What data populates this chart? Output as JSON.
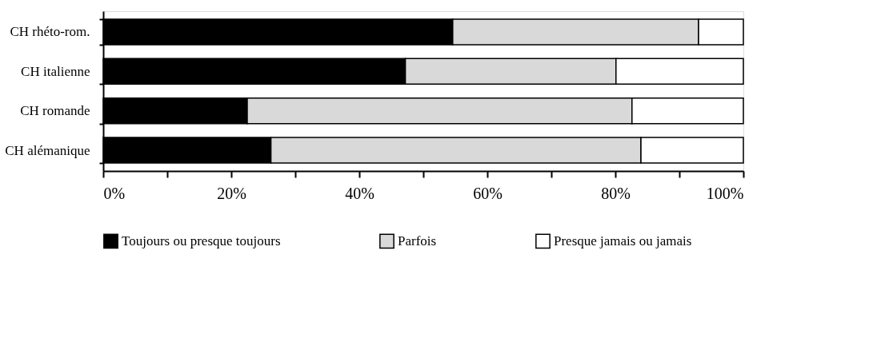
{
  "chart_data": {
    "type": "bar",
    "orientation": "horizontal",
    "stacked": true,
    "categories": [
      "CH rhéto-rom.",
      "CH italienne",
      "CH romande",
      "CH alémanique"
    ],
    "series": [
      {
        "name": "Toujours ou presque toujours",
        "color": "#000000",
        "values": [
          54.6,
          47.2,
          22.5,
          26.2
        ]
      },
      {
        "name": "Parfois",
        "color": "#d9d9d9",
        "values": [
          38.4,
          32.9,
          60.1,
          57.8
        ]
      },
      {
        "name": "Presque jamais ou jamais",
        "color": "#ffffff",
        "values": [
          7.0,
          19.9,
          17.4,
          16.0
        ]
      }
    ],
    "xlim": [
      0,
      100
    ],
    "xticks": [
      {
        "value": 0,
        "label": "0%"
      },
      {
        "value": 10,
        "label": null
      },
      {
        "value": 20,
        "label": "20%"
      },
      {
        "value": 30,
        "label": null
      },
      {
        "value": 40,
        "label": "40%"
      },
      {
        "value": 50,
        "label": null
      },
      {
        "value": 60,
        "label": "60%"
      },
      {
        "value": 70,
        "label": null
      },
      {
        "value": 80,
        "label": "80%"
      },
      {
        "value": 90,
        "label": null
      },
      {
        "value": 100,
        "label": "100%"
      }
    ],
    "grid": false,
    "legend": "bottom"
  }
}
